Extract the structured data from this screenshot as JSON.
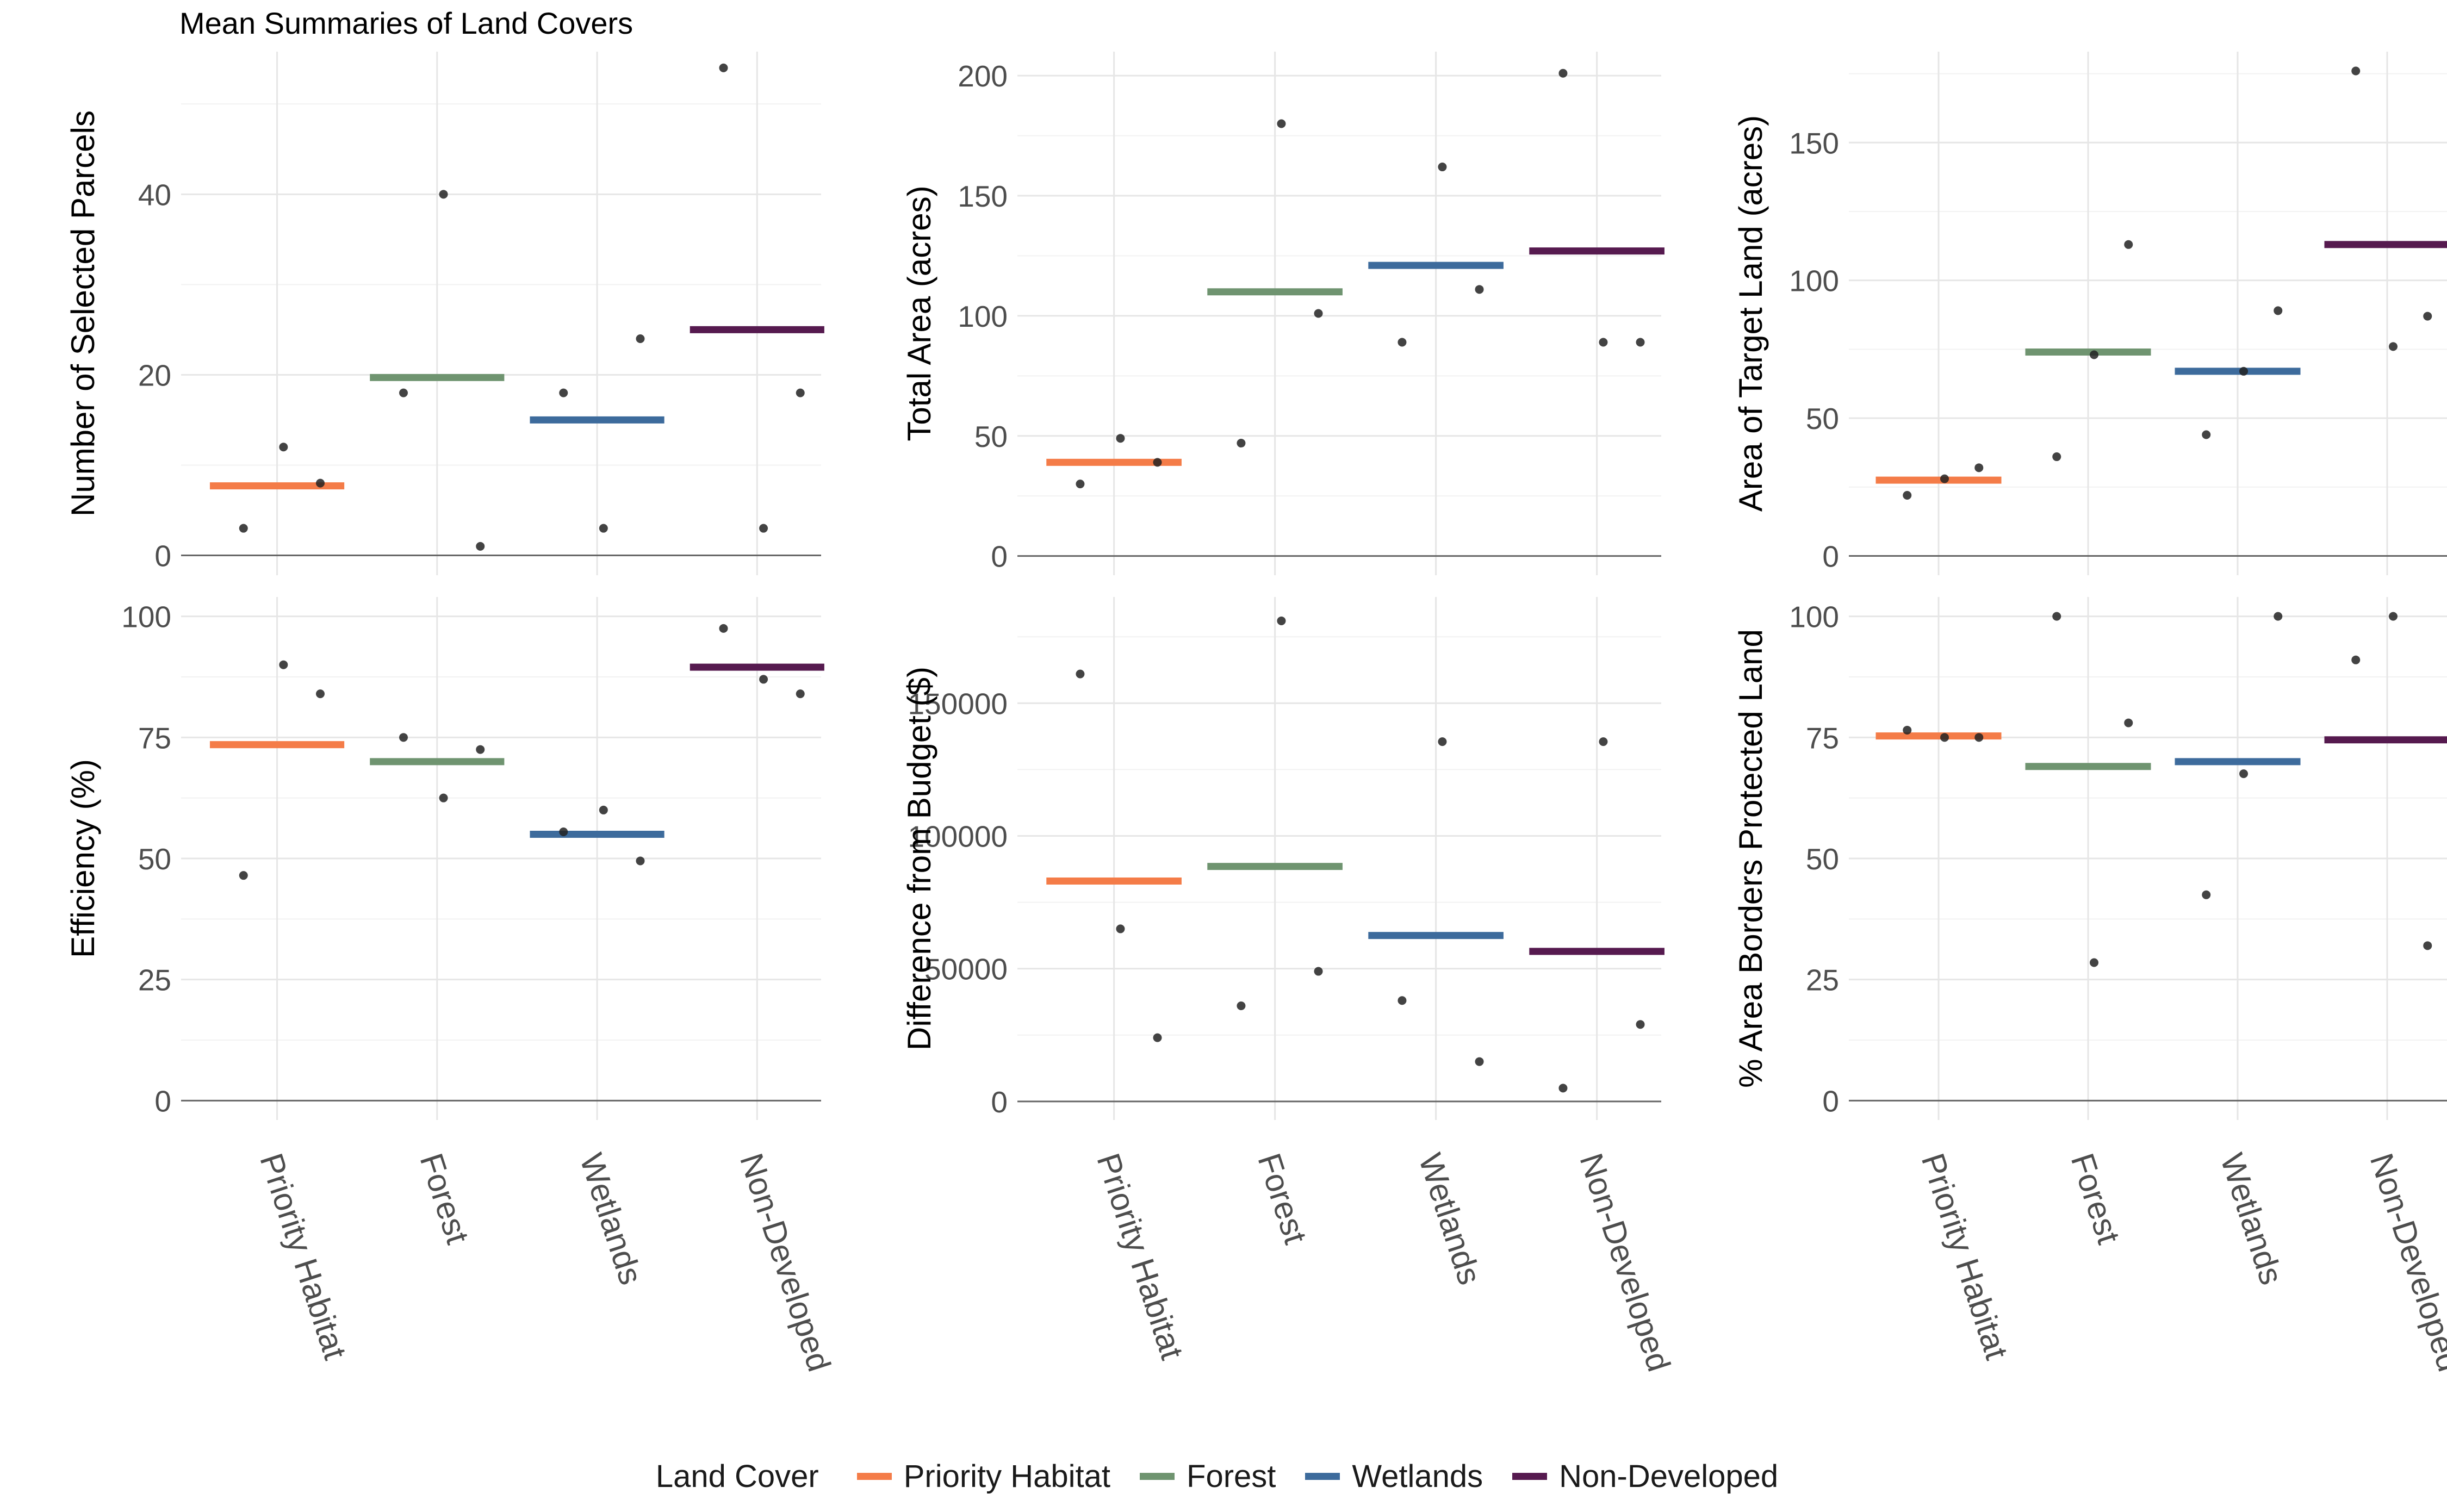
{
  "title": "Mean Summaries of Land Covers",
  "legend": {
    "title": "Land Cover",
    "items": [
      {
        "label": "Priority Habitat",
        "color": "#f47c48"
      },
      {
        "label": "Forest",
        "color": "#6f9470"
      },
      {
        "label": "Wetlands",
        "color": "#3d6b9c"
      },
      {
        "label": "Non-Developed",
        "color": "#561a4f"
      }
    ]
  },
  "chart_data": [
    {
      "type": "scatter",
      "title": "Mean Summaries of Land Covers",
      "ylabel": "Number of Selected Parcels",
      "categories": [
        "Priority Habitat",
        "Forest",
        "Wetlands",
        "Non-Developed"
      ],
      "ylim": [
        -2.2,
        55.8
      ],
      "yticks": [
        0,
        20,
        40
      ],
      "ytick_labels": [
        "0",
        "20",
        "40"
      ],
      "show_x_labels": false,
      "means": [
        7.7,
        19.7,
        15,
        25
      ],
      "points": [
        [
          3,
          12,
          8
        ],
        [
          18,
          40,
          1
        ],
        [
          18,
          3,
          24
        ],
        [
          54,
          3,
          18
        ]
      ]
    },
    {
      "type": "scatter",
      "ylabel": "Total Area (acres)",
      "categories": [
        "Priority Habitat",
        "Forest",
        "Wetlands",
        "Non-Developed"
      ],
      "ylim": [
        -8,
        210
      ],
      "yticks": [
        0,
        50,
        100,
        150,
        200
      ],
      "ytick_labels": [
        "0",
        "50",
        "100",
        "150",
        "200"
      ],
      "show_x_labels": false,
      "means": [
        39,
        110,
        121,
        127
      ],
      "points": [
        [
          30,
          49,
          39
        ],
        [
          47,
          180,
          101
        ],
        [
          89,
          162,
          111
        ],
        [
          201,
          89,
          89
        ]
      ]
    },
    {
      "type": "scatter",
      "ylabel": "Area of Target Land (acres)",
      "categories": [
        "Priority Habitat",
        "Forest",
        "Wetlands",
        "Non-Developed"
      ],
      "ylim": [
        -7,
        183
      ],
      "yticks": [
        0,
        50,
        100,
        150
      ],
      "ytick_labels": [
        "0",
        "50",
        "100",
        "150"
      ],
      "show_x_labels": false,
      "means": [
        27.5,
        74,
        67,
        113
      ],
      "points": [
        [
          22,
          28,
          32
        ],
        [
          36,
          73,
          113
        ],
        [
          44,
          67,
          89
        ],
        [
          176,
          76,
          87
        ]
      ]
    },
    {
      "type": "scatter",
      "ylabel": "Efficiency (%)",
      "categories": [
        "Priority Habitat",
        "Forest",
        "Wetlands",
        "Non-Developed"
      ],
      "ylim": [
        -4,
        104
      ],
      "yticks": [
        0,
        25,
        50,
        75,
        100
      ],
      "ytick_labels": [
        "0",
        "25",
        "50",
        "75",
        "100"
      ],
      "show_x_labels": true,
      "means": [
        73.5,
        70,
        55,
        89.5
      ],
      "points": [
        [
          46.5,
          90,
          84
        ],
        [
          75,
          62.5,
          72.5
        ],
        [
          55.5,
          60,
          49.5
        ],
        [
          97.5,
          87,
          84
        ]
      ]
    },
    {
      "type": "scatter",
      "ylabel": "Difference from Budget ($)",
      "categories": [
        "Priority Habitat",
        "Forest",
        "Wetlands",
        "Non-Developed"
      ],
      "ylim": [
        -7000,
        190000
      ],
      "yticks": [
        0,
        50000,
        100000,
        150000
      ],
      "ytick_labels": [
        "0",
        "50000",
        "100000",
        "150000"
      ],
      "show_x_labels": true,
      "means": [
        83000,
        88500,
        62500,
        56500
      ],
      "points": [
        [
          161000,
          65000,
          24000
        ],
        [
          36000,
          181000,
          49000
        ],
        [
          38000,
          135500,
          15000
        ],
        [
          5000,
          135500,
          29000
        ]
      ]
    },
    {
      "type": "scatter",
      "ylabel": "% Area Borders Protected Land",
      "categories": [
        "Priority Habitat",
        "Forest",
        "Wetlands",
        "Non-Developed"
      ],
      "ylim": [
        -4,
        104
      ],
      "yticks": [
        0,
        25,
        50,
        75,
        100
      ],
      "ytick_labels": [
        "0",
        "25",
        "50",
        "75",
        "100"
      ],
      "show_x_labels": true,
      "means": [
        75.3,
        69,
        70,
        74.5
      ],
      "points": [
        [
          76.5,
          75,
          75
        ],
        [
          100,
          28.5,
          78
        ],
        [
          42.5,
          67.5,
          100
        ],
        [
          91,
          100,
          32
        ]
      ]
    }
  ]
}
